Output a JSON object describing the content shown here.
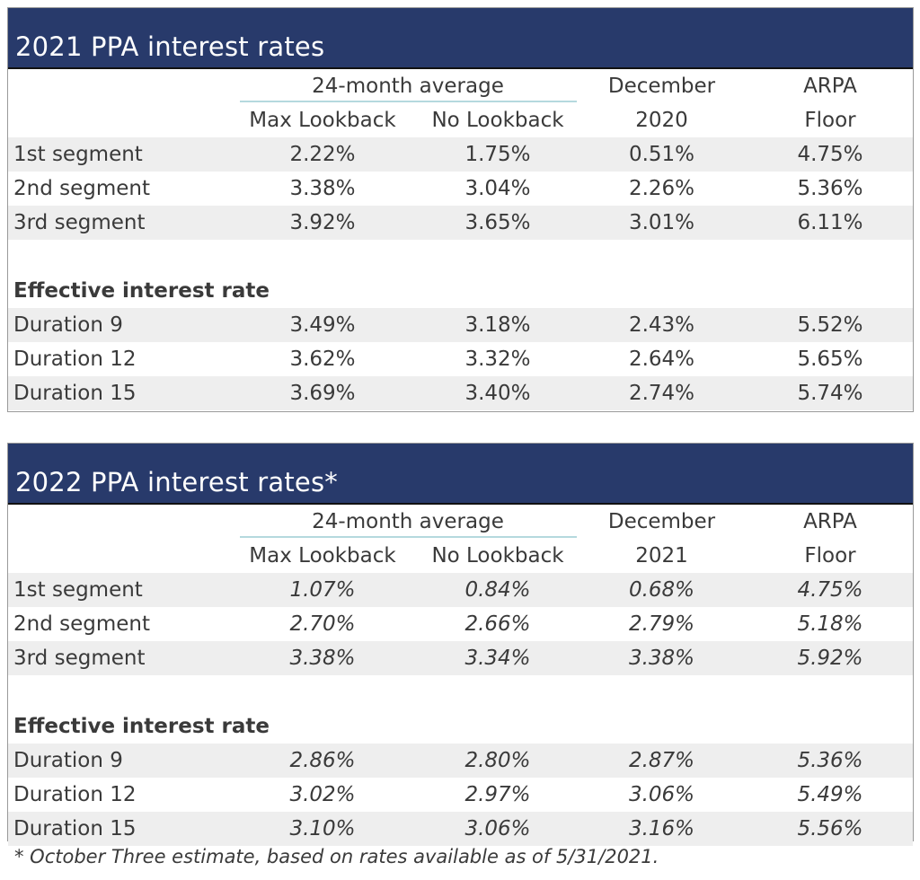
{
  "tables": [
    {
      "title": "2021 PPA interest rates",
      "header": {
        "avg_label": "24-month average",
        "max_lookback": "Max Lookback",
        "no_lookback": "No Lookback",
        "dec_line1": "December",
        "dec_line2": "2020",
        "arpa_line1": "ARPA",
        "arpa_line2": "Floor"
      },
      "segments": [
        {
          "label": "1st segment",
          "max": "2.22%",
          "no": "1.75%",
          "dec": "0.51%",
          "arpa": "4.75%"
        },
        {
          "label": "2nd segment",
          "max": "3.38%",
          "no": "3.04%",
          "dec": "2.26%",
          "arpa": "5.36%"
        },
        {
          "label": "3rd segment",
          "max": "3.92%",
          "no": "3.65%",
          "dec": "3.01%",
          "arpa": "6.11%"
        }
      ],
      "effective_heading": "Effective interest rate",
      "durations": [
        {
          "label": "Duration 9",
          "max": "3.49%",
          "no": "3.18%",
          "dec": "2.43%",
          "arpa": "5.52%"
        },
        {
          "label": "Duration 12",
          "max": "3.62%",
          "no": "3.32%",
          "dec": "2.64%",
          "arpa": "5.65%"
        },
        {
          "label": "Duration 15",
          "max": "3.69%",
          "no": "3.40%",
          "dec": "2.74%",
          "arpa": "5.74%"
        }
      ]
    },
    {
      "title": "2022 PPA interest rates*",
      "header": {
        "avg_label": "24-month average",
        "max_lookback": "Max Lookback",
        "no_lookback": "No Lookback",
        "dec_line1": "December",
        "dec_line2": "2021",
        "arpa_line1": "ARPA",
        "arpa_line2": "Floor"
      },
      "segments": [
        {
          "label": "1st segment",
          "max": "1.07%",
          "no": "0.84%",
          "dec": "0.68%",
          "arpa": "4.75%"
        },
        {
          "label": "2nd segment",
          "max": "2.70%",
          "no": "2.66%",
          "dec": "2.79%",
          "arpa": "5.18%"
        },
        {
          "label": "3rd segment",
          "max": "3.38%",
          "no": "3.34%",
          "dec": "3.38%",
          "arpa": "5.92%"
        }
      ],
      "effective_heading": "Effective interest rate",
      "durations": [
        {
          "label": "Duration 9",
          "max": "2.86%",
          "no": "2.80%",
          "dec": "2.87%",
          "arpa": "5.36%"
        },
        {
          "label": "Duration 12",
          "max": "3.02%",
          "no": "2.97%",
          "dec": "3.06%",
          "arpa": "5.49%"
        },
        {
          "label": "Duration 15",
          "max": "3.10%",
          "no": "3.06%",
          "dec": "3.16%",
          "arpa": "5.56%"
        }
      ]
    }
  ],
  "footnote": "* October Three estimate, based on rates available as of 5/31/2021."
}
